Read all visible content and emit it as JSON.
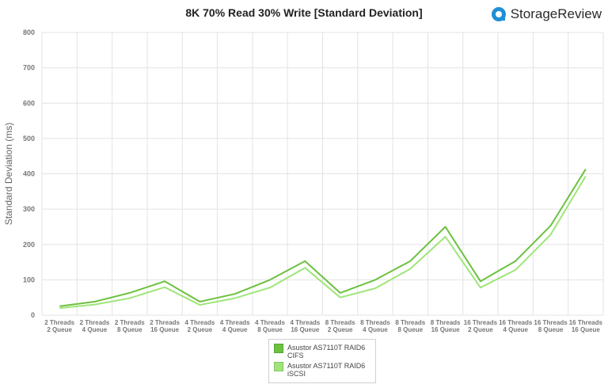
{
  "header": {
    "title": "8K 70% Read 30% Write [Standard Deviation]",
    "brand": "StorageReview"
  },
  "colors": {
    "series1": "#6cc13f",
    "series2": "#9fe57a",
    "grid": "#e3e3e3",
    "brand_blue": "#1e90d6"
  },
  "chart_data": {
    "type": "line",
    "title": "8K 70% Read 30% Write [Standard Deviation]",
    "xlabel": "",
    "ylabel": "Standard Deviation (ms)",
    "ylim": [
      0,
      800
    ],
    "yticks": [
      0,
      100,
      200,
      300,
      400,
      500,
      600,
      700,
      800
    ],
    "grid": true,
    "legend_position": "bottom",
    "categories": [
      [
        "2 Threads",
        "2 Queue"
      ],
      [
        "2 Threads",
        "4 Queue"
      ],
      [
        "2 Threads",
        "8 Queue"
      ],
      [
        "2 Threads",
        "16 Queue"
      ],
      [
        "4 Threads",
        "2 Queue"
      ],
      [
        "4 Threads",
        "4 Queue"
      ],
      [
        "4 Threads",
        "8 Queue"
      ],
      [
        "4 Threads",
        "16 Queue"
      ],
      [
        "8 Threads",
        "2 Queue"
      ],
      [
        "8 Threads",
        "4 Queue"
      ],
      [
        "8 Threads",
        "8 Queue"
      ],
      [
        "8 Threads",
        "16 Queue"
      ],
      [
        "16 Threads",
        "2 Queue"
      ],
      [
        "16 Threads",
        "4 Queue"
      ],
      [
        "16 Threads",
        "8 Queue"
      ],
      [
        "16 Threads",
        "16 Queue"
      ]
    ],
    "series": [
      {
        "name": "Asustor AS7110T RAID6\nCIFS",
        "color": "#6cc13f",
        "values": [
          25,
          38,
          63,
          96,
          38,
          60,
          100,
          153,
          63,
          100,
          153,
          250,
          96,
          153,
          253,
          413
        ]
      },
      {
        "name": "Asustor AS7110T RAID6\niSCSI",
        "color": "#9fe57a",
        "values": [
          20,
          30,
          48,
          79,
          29,
          48,
          78,
          134,
          50,
          76,
          131,
          222,
          78,
          128,
          228,
          393
        ]
      }
    ]
  }
}
